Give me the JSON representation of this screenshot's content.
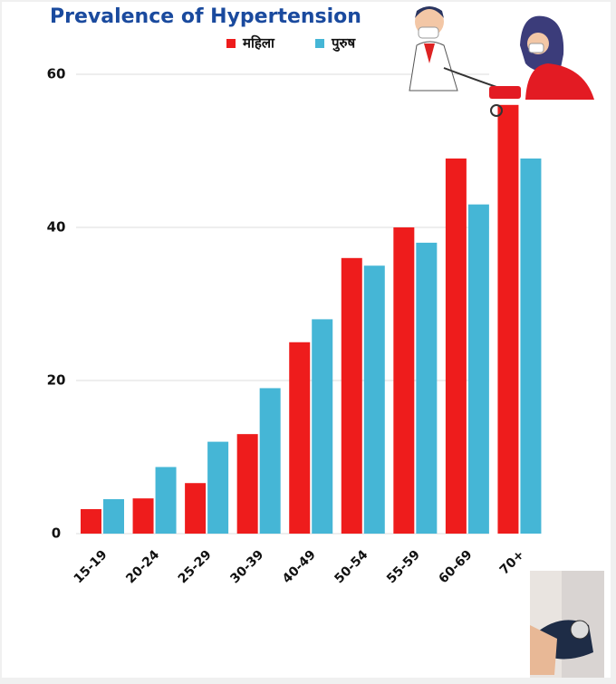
{
  "chart_data": {
    "type": "bar",
    "title": "Prevalence of Hypertension",
    "categories": [
      "15-19",
      "20-24",
      "25-29",
      "30-39",
      "40-49",
      "50-54",
      "55-59",
      "60-69",
      "70+"
    ],
    "series": [
      {
        "name": "महिला",
        "color": "#ee1c1c",
        "values": [
          3.2,
          4.6,
          6.6,
          13,
          25,
          36,
          40,
          49,
          56
        ]
      },
      {
        "name": "पुरुष",
        "color": "#45b6d6",
        "values": [
          4.5,
          8.7,
          12,
          19,
          28,
          35,
          38,
          43,
          49
        ]
      }
    ],
    "ylim": [
      0,
      60
    ],
    "yticks": [
      0,
      20,
      40,
      60
    ],
    "grid": true
  }
}
